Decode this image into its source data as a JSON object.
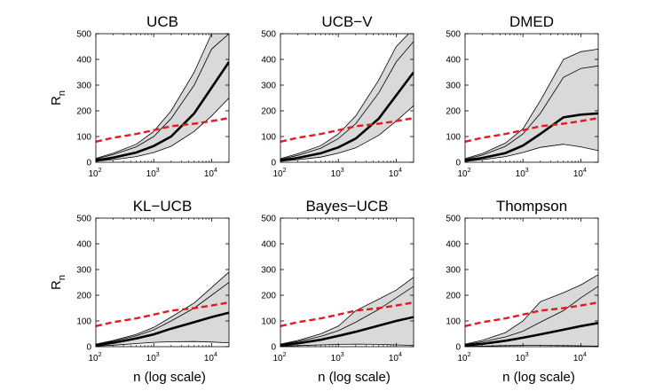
{
  "figure": {
    "ylabel": "R",
    "ylabel_sub": "n",
    "xlabel": "n (log scale)"
  },
  "colors": {
    "band_fill": "#d9d9d9",
    "median": "#000000",
    "bound": "#e41a1c",
    "frame": "#000000"
  },
  "chart_data": [
    {
      "type": "area",
      "title": "UCB",
      "x_scale": "log",
      "xlim": [
        100,
        20000
      ],
      "ylim": [
        0,
        500
      ],
      "x_ticks": [
        "10^2",
        "10^3",
        "10^4"
      ],
      "y_ticks": [
        0,
        100,
        200,
        300,
        400,
        500
      ],
      "x": [
        100,
        200,
        500,
        1000,
        2000,
        5000,
        10000,
        20000
      ],
      "lower_bound": {
        "style": "dashed",
        "values": [
          80,
          95,
          110,
          125,
          140,
          150,
          160,
          172
        ]
      },
      "series": [
        {
          "role": "upper-extreme",
          "values": [
            15,
            35,
            70,
            120,
            200,
            350,
            500,
            560
          ]
        },
        {
          "role": "upper-quantile",
          "values": [
            12,
            30,
            60,
            100,
            170,
            300,
            440,
            500
          ]
        },
        {
          "role": "median",
          "values": [
            7,
            18,
            38,
            63,
            100,
            190,
            290,
            390
          ]
        },
        {
          "role": "lower-quantile",
          "values": [
            4,
            10,
            22,
            38,
            62,
            120,
            180,
            250
          ]
        }
      ]
    },
    {
      "type": "area",
      "title": "UCB−V",
      "x_scale": "log",
      "xlim": [
        100,
        20000
      ],
      "ylim": [
        0,
        500
      ],
      "x_ticks": [
        "10^2",
        "10^3",
        "10^4"
      ],
      "y_ticks": [
        0,
        100,
        200,
        300,
        400,
        500
      ],
      "x": [
        100,
        200,
        500,
        1000,
        2000,
        5000,
        10000,
        20000
      ],
      "lower_bound": {
        "style": "dashed",
        "values": [
          80,
          95,
          110,
          125,
          140,
          150,
          160,
          172
        ]
      },
      "series": [
        {
          "role": "upper-extreme",
          "values": [
            14,
            33,
            65,
            110,
            180,
            320,
            450,
            520
          ]
        },
        {
          "role": "upper-quantile",
          "values": [
            11,
            27,
            55,
            92,
            150,
            270,
            390,
            470
          ]
        },
        {
          "role": "median",
          "values": [
            7,
            17,
            35,
            58,
            92,
            170,
            260,
            350
          ]
        },
        {
          "role": "lower-quantile",
          "values": [
            4,
            10,
            20,
            35,
            56,
            105,
            160,
            220
          ]
        }
      ]
    },
    {
      "type": "area",
      "title": "DMED",
      "x_scale": "log",
      "xlim": [
        100,
        20000
      ],
      "ylim": [
        0,
        500
      ],
      "x_ticks": [
        "10^2",
        "10^3",
        "10^4"
      ],
      "y_ticks": [
        0,
        100,
        200,
        300,
        400,
        500
      ],
      "x": [
        100,
        200,
        500,
        1000,
        2000,
        5000,
        10000,
        20000
      ],
      "lower_bound": {
        "style": "dashed",
        "values": [
          80,
          95,
          110,
          125,
          140,
          150,
          160,
          172
        ]
      },
      "series": [
        {
          "role": "upper-extreme",
          "values": [
            14,
            34,
            75,
            130,
            240,
            400,
            430,
            440
          ]
        },
        {
          "role": "upper-quantile",
          "values": [
            11,
            28,
            62,
            110,
            190,
            330,
            365,
            375
          ]
        },
        {
          "role": "median",
          "values": [
            7,
            17,
            36,
            65,
            110,
            175,
            185,
            190
          ]
        },
        {
          "role": "lower-quantile",
          "values": [
            3,
            10,
            22,
            38,
            58,
            70,
            60,
            45
          ]
        }
      ]
    },
    {
      "type": "area",
      "title": "KL−UCB",
      "x_scale": "log",
      "xlim": [
        100,
        20000
      ],
      "ylim": [
        0,
        500
      ],
      "x_ticks": [
        "10^2",
        "10^3",
        "10^4"
      ],
      "y_ticks": [
        0,
        100,
        200,
        300,
        400,
        500
      ],
      "x": [
        100,
        200,
        500,
        1000,
        2000,
        5000,
        10000,
        20000
      ],
      "lower_bound": {
        "style": "dashed",
        "values": [
          80,
          95,
          110,
          125,
          140,
          150,
          160,
          172
        ]
      },
      "series": [
        {
          "role": "upper-extreme",
          "values": [
            10,
            24,
            48,
            75,
            115,
            170,
            230,
            290
          ]
        },
        {
          "role": "upper-quantile",
          "values": [
            9,
            21,
            42,
            65,
            100,
            150,
            200,
            250
          ]
        },
        {
          "role": "median",
          "values": [
            6,
            15,
            32,
            48,
            70,
            95,
            115,
            132
          ]
        },
        {
          "role": "lower-quantile",
          "values": [
            2,
            6,
            12,
            17,
            19,
            20,
            18,
            15
          ]
        }
      ]
    },
    {
      "type": "area",
      "title": "Bayes−UCB",
      "x_scale": "log",
      "xlim": [
        100,
        20000
      ],
      "ylim": [
        0,
        500
      ],
      "x_ticks": [
        "10^2",
        "10^3",
        "10^4"
      ],
      "y_ticks": [
        0,
        100,
        200,
        300,
        400,
        500
      ],
      "x": [
        100,
        200,
        500,
        1000,
        2000,
        5000,
        10000,
        20000
      ],
      "lower_bound": {
        "style": "dashed",
        "values": [
          80,
          95,
          110,
          125,
          140,
          150,
          160,
          172
        ]
      },
      "series": [
        {
          "role": "upper-extreme",
          "values": [
            10,
            24,
            50,
            80,
            140,
            185,
            220,
            270
          ]
        },
        {
          "role": "upper-quantile",
          "values": [
            9,
            20,
            40,
            62,
            95,
            145,
            190,
            235
          ]
        },
        {
          "role": "median",
          "values": [
            5,
            13,
            27,
            42,
            58,
            82,
            100,
            115
          ]
        },
        {
          "role": "lower-quantile",
          "values": [
            1,
            4,
            7,
            9,
            10,
            9,
            7,
            5
          ]
        }
      ]
    },
    {
      "type": "area",
      "title": "Thompson",
      "x_scale": "log",
      "xlim": [
        100,
        20000
      ],
      "ylim": [
        0,
        500
      ],
      "x_ticks": [
        "10^2",
        "10^3",
        "10^4"
      ],
      "y_ticks": [
        0,
        100,
        200,
        300,
        400,
        500
      ],
      "x": [
        100,
        200,
        500,
        1000,
        2000,
        5000,
        10000,
        20000
      ],
      "lower_bound": {
        "style": "dashed",
        "values": [
          80,
          95,
          110,
          125,
          140,
          150,
          160,
          172
        ]
      },
      "series": [
        {
          "role": "upper-extreme",
          "values": [
            10,
            25,
            55,
            100,
            175,
            210,
            240,
            280
          ]
        },
        {
          "role": "upper-quantile",
          "values": [
            8,
            19,
            38,
            60,
            95,
            140,
            190,
            235
          ]
        },
        {
          "role": "median",
          "values": [
            5,
            11,
            23,
            35,
            48,
            66,
            80,
            92
          ]
        },
        {
          "role": "lower-quantile",
          "values": [
            1,
            2,
            4,
            5,
            5,
            4,
            3,
            2
          ]
        }
      ]
    }
  ]
}
